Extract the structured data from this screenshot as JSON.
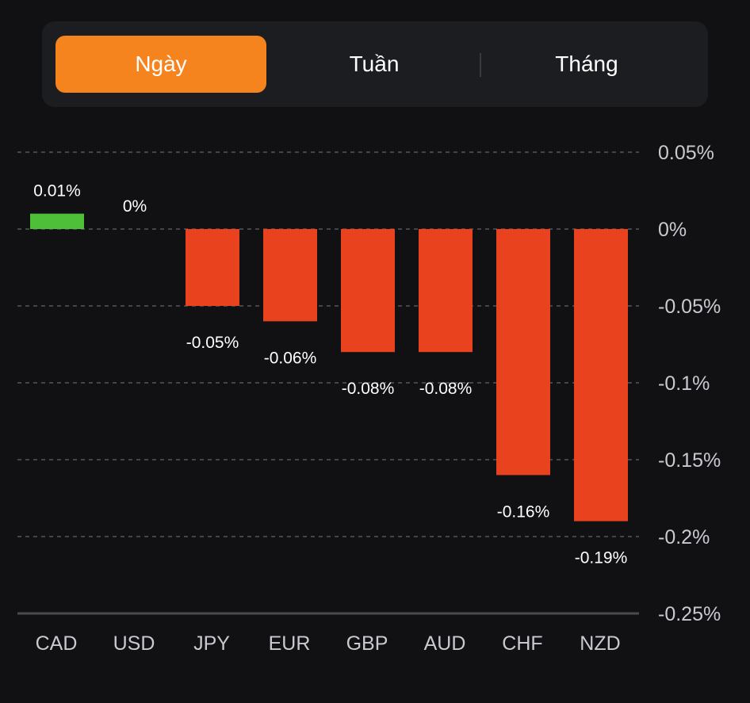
{
  "tabs": [
    {
      "label": "Ngày",
      "active": true
    },
    {
      "label": "Tuần",
      "active": false
    },
    {
      "label": "Tháng",
      "active": false
    }
  ],
  "colors": {
    "positive": "#4dbf38",
    "negative": "#e8421e",
    "active_tab": "#f5841f",
    "background": "#111114"
  },
  "chart_data": {
    "type": "bar",
    "title": "",
    "xlabel": "",
    "ylabel": "",
    "categories": [
      "CAD",
      "USD",
      "JPY",
      "EUR",
      "GBP",
      "AUD",
      "CHF",
      "NZD"
    ],
    "values": [
      0.01,
      0,
      -0.05,
      -0.06,
      -0.08,
      -0.08,
      -0.16,
      -0.19
    ],
    "value_labels": [
      "0.01%",
      "0%",
      "-0.05%",
      "-0.06%",
      "-0.08%",
      "-0.08%",
      "-0.16%",
      "-0.19%"
    ],
    "ylim": [
      -0.25,
      0.05
    ],
    "yticks": [
      0.05,
      0,
      -0.05,
      -0.1,
      -0.15,
      -0.2,
      -0.25
    ],
    "ytick_labels": [
      "0.05%",
      "0%",
      "-0.05%",
      "-0.1%",
      "-0.15%",
      "-0.2%",
      "-0.25%"
    ],
    "y_axis_position": "right",
    "grid": true,
    "legend": "none"
  }
}
